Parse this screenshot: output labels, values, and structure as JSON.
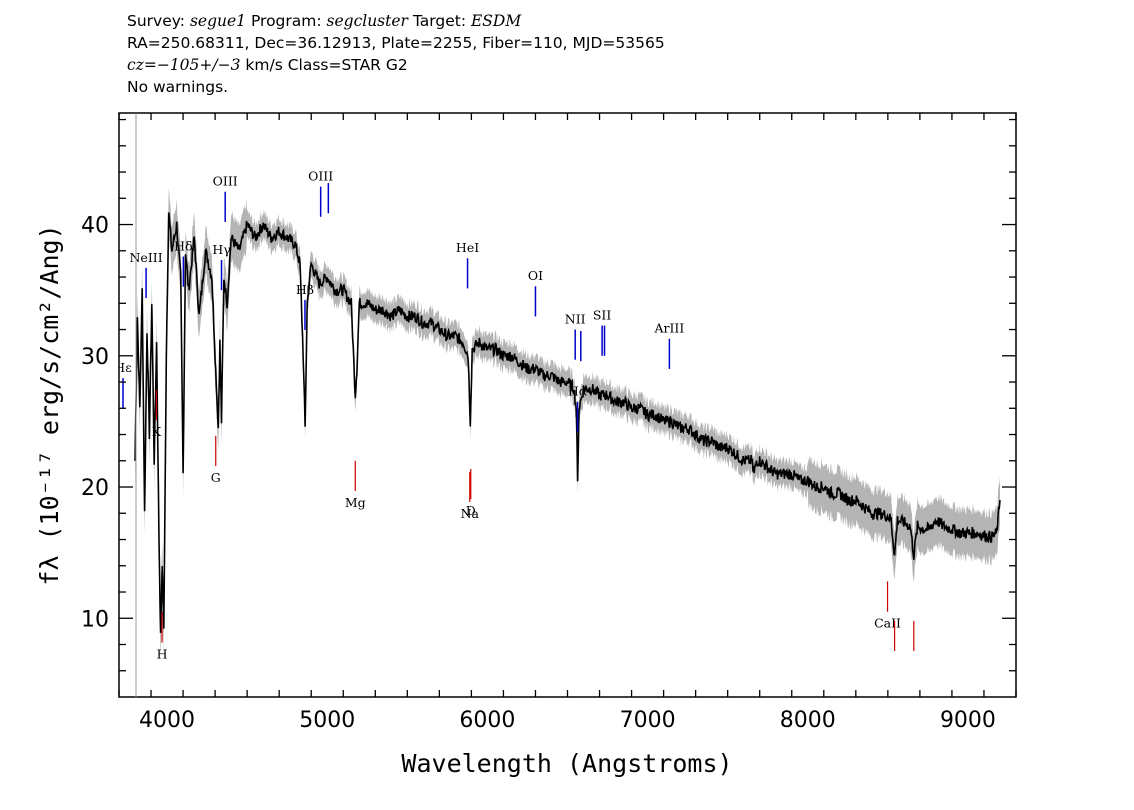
{
  "header": {
    "line1": {
      "survey_label": "Survey: ",
      "survey": "segue1",
      "program_label": " Program: ",
      "program": "segcluster",
      "target_label": " Target: ",
      "target": "ESDM"
    },
    "line2": "RA=250.68311, Dec=36.12913, Plate=2255, Fiber=110, MJD=53565",
    "line3": {
      "cz": "cz=−105+/−3",
      "rest": " km/s Class=STAR G2"
    },
    "line4": "No warnings."
  },
  "chart_data": {
    "type": "line",
    "xlabel": "Wavelength (Angstroms)",
    "ylabel": "fλ (10⁻¹⁷ erg/s/cm²/Ang)",
    "xlim": [
      3700,
      9300
    ],
    "ylim": [
      4,
      48.5
    ],
    "x_ticks": [
      4000,
      5000,
      6000,
      7000,
      8000,
      9000
    ],
    "y_ticks": [
      10,
      20,
      30,
      40
    ],
    "colors": {
      "flux": "#000000",
      "error_band": "#b4b4b4",
      "emission": "#0000cc",
      "absorption": "#cc0000"
    },
    "series": [
      {
        "x": [
          3800,
          3815,
          3830,
          3845,
          3860,
          3875,
          3890,
          3905,
          3920,
          3935,
          3950,
          3960,
          3970,
          3980,
          3995,
          4010,
          4030,
          4060,
          4085,
          4100,
          4115,
          4135,
          4170,
          4200,
          4240,
          4280,
          4300,
          4320,
          4330,
          4340,
          4355,
          4375,
          4400,
          4450,
          4500,
          4550,
          4600,
          4650,
          4700,
          4750,
          4800,
          4830,
          4850,
          4862,
          4875,
          4900,
          4950,
          5000,
          5050,
          5100,
          5150,
          5175,
          5185,
          5200,
          5250,
          5300,
          5350,
          5400,
          5450,
          5500,
          5550,
          5600,
          5650,
          5700,
          5750,
          5800,
          5850,
          5880,
          5893,
          5905,
          5950,
          6000,
          6050,
          6100,
          6150,
          6200,
          6250,
          6300,
          6350,
          6400,
          6450,
          6500,
          6540,
          6555,
          6563,
          6572,
          6600,
          6650,
          6700,
          6750,
          6800,
          6850,
          6900,
          6950,
          7000,
          7050,
          7100,
          7150,
          7200,
          7250,
          7300,
          7350,
          7400,
          7450,
          7500,
          7550,
          7600,
          7650,
          7665,
          7680,
          7700,
          7750,
          7800,
          7850,
          7900,
          7950,
          8000,
          8050,
          8100,
          8150,
          8200,
          8250,
          8300,
          8350,
          8400,
          8450,
          8498,
          8520,
          8542,
          8560,
          8600,
          8640,
          8662,
          8685,
          8720,
          8760,
          8800,
          8850,
          8900,
          8950,
          9000,
          9050,
          9100,
          9150,
          9180,
          9200
        ],
        "y": [
          22,
          33,
          26,
          35,
          18,
          32,
          24,
          34,
          22,
          31,
          16,
          8.5,
          14,
          9.3,
          30,
          41,
          38,
          40,
          36,
          21,
          38,
          35,
          39,
          33,
          38,
          36,
          30,
          24.5,
          31,
          25,
          36,
          34,
          39,
          38,
          40,
          39,
          40,
          39,
          39.5,
          39,
          38.5,
          37,
          30,
          24.5,
          34,
          37,
          35.5,
          36,
          35,
          35,
          34,
          27,
          29,
          34,
          34,
          33.5,
          33.5,
          33,
          33.5,
          33,
          33,
          32.5,
          32.5,
          32,
          31.5,
          31.5,
          31,
          30,
          25,
          30.5,
          31,
          30.5,
          30.5,
          30,
          30,
          29.5,
          29,
          29,
          28.5,
          28.5,
          28,
          28,
          27.5,
          26,
          20.2,
          26,
          27.5,
          27.5,
          27,
          27,
          26.5,
          26.5,
          26,
          26,
          25.5,
          25.5,
          25,
          25,
          24.5,
          24.5,
          24,
          23.5,
          23.5,
          23,
          23,
          22.5,
          22,
          22,
          21,
          22,
          22,
          21.5,
          21,
          21,
          21,
          20.5,
          20.5,
          20,
          20,
          19.5,
          19.5,
          19,
          19,
          18.5,
          18,
          18,
          17.8,
          17.5,
          14.8,
          17.5,
          17.3,
          17,
          14.8,
          17,
          16.8,
          16.8,
          17.5,
          17,
          16.8,
          16.5,
          16.5,
          16.5,
          16.3,
          16.2,
          16.5,
          19
        ]
      }
    ],
    "emission_lines": [
      {
        "label": "Hε",
        "wave": 3725
      },
      {
        "label": "NeIII",
        "wave": 3869
      },
      {
        "label": "Hδ",
        "wave": 4102
      },
      {
        "label": "Hγ",
        "wave": 4340
      },
      {
        "label": "OIII",
        "wave": 4363
      },
      {
        "label": "Hβ",
        "wave": 4861
      },
      {
        "label": "OIII",
        "wave": 4959
      },
      {
        "label": "",
        "wave": 5007
      },
      {
        "label": "HeI",
        "wave": 5876
      },
      {
        "label": "OI",
        "wave": 6300
      },
      {
        "label": "NII",
        "wave": 6548
      },
      {
        "label": "Hα",
        "wave": 6563
      },
      {
        "label": "",
        "wave": 6583
      },
      {
        "label": "SII",
        "wave": 6716
      },
      {
        "label": "",
        "wave": 6731
      },
      {
        "label": "ArIII",
        "wave": 7136
      }
    ],
    "absorption_lines": [
      {
        "label": "K",
        "wave": 3934
      },
      {
        "label": "H",
        "wave": 3969
      },
      {
        "label": "G",
        "wave": 4304
      },
      {
        "label": "Mg",
        "wave": 5175
      },
      {
        "label": "Na",
        "wave": 5890
      },
      {
        "label": "D",
        "wave": 5896
      },
      {
        "label": "CaII",
        "wave": 8498
      },
      {
        "label": "",
        "wave": 8542
      },
      {
        "label": "",
        "wave": 8662
      }
    ]
  }
}
